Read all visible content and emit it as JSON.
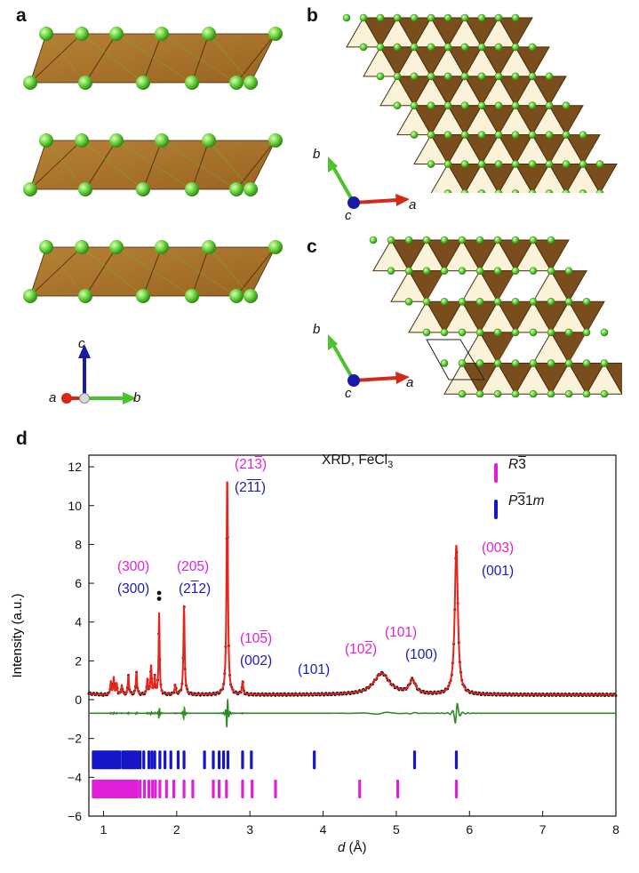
{
  "panels": {
    "a": {
      "letter": "a",
      "axes": {
        "vertical": "c",
        "depth": "a",
        "horizontal": "b"
      }
    },
    "b": {
      "letter": "b",
      "axes": {
        "up": "b",
        "out": "c",
        "right": "a"
      }
    },
    "c": {
      "letter": "c",
      "axes": {
        "up": "b",
        "out": "c",
        "right": "a"
      }
    },
    "d": {
      "letter": "d"
    }
  },
  "colors": {
    "chlorine": "#6ad23c",
    "octahedron": "#a9742e",
    "octahedron_dark": "#6e4716",
    "fit_red": "#e8231a",
    "diff_green": "#2e8b24",
    "r3_magenta": "#e020d8",
    "p31m_blue": "#1616c8",
    "axis_red": "#d42a1a",
    "axis_green": "#4cc22c",
    "axis_blue": "#1a1aa8"
  },
  "chart_data": {
    "type": "line",
    "title": "XRD, FeCl3",
    "xlabel": "d (Å)",
    "ylabel": "Intensity (a.u.)",
    "xlim": [
      0.8,
      8.0
    ],
    "ylim": [
      -6,
      12.6
    ],
    "xticks": [
      1,
      2,
      3,
      4,
      5,
      6,
      7,
      8
    ],
    "yticks": [
      -6,
      -4,
      -2,
      0,
      2,
      4,
      6,
      8,
      10,
      12
    ],
    "legend": {
      "placement": "top-right",
      "entries": [
        {
          "label": "R3",
          "bar_over": "3",
          "color": "#e020d8"
        },
        {
          "label": "P31m",
          "bar_over": "3",
          "color": "#1616c8"
        }
      ]
    },
    "fit_peaks": [
      {
        "d": 1.1,
        "h": 0.7,
        "w": 0.008
      },
      {
        "d": 1.14,
        "h": 0.9,
        "w": 0.008
      },
      {
        "d": 1.18,
        "h": 0.6,
        "w": 0.008
      },
      {
        "d": 1.25,
        "h": 0.5,
        "w": 0.008
      },
      {
        "d": 1.34,
        "h": 1.0,
        "w": 0.009
      },
      {
        "d": 1.45,
        "h": 1.2,
        "w": 0.009
      },
      {
        "d": 1.6,
        "h": 0.8,
        "w": 0.009
      },
      {
        "d": 1.65,
        "h": 1.5,
        "w": 0.009
      },
      {
        "d": 1.7,
        "h": 0.9,
        "w": 0.009
      },
      {
        "d": 1.76,
        "h": 4.2,
        "w": 0.008
      },
      {
        "d": 1.98,
        "h": 0.5,
        "w": 0.01
      },
      {
        "d": 2.1,
        "h": 4.6,
        "w": 0.01
      },
      {
        "d": 2.69,
        "h": 11.3,
        "w": 0.011
      },
      {
        "d": 2.9,
        "h": 0.7,
        "w": 0.01
      },
      {
        "d": 4.8,
        "h": 1.1,
        "w": 0.13
      },
      {
        "d": 5.22,
        "h": 0.7,
        "w": 0.05
      },
      {
        "d": 5.82,
        "h": 7.7,
        "w": 0.025
      }
    ],
    "fit_baseline": 0.25,
    "obs_excess": [
      {
        "d": 1.76,
        "value": 5.2
      },
      {
        "d": 1.76,
        "value": 5.5
      }
    ],
    "difference_offset": -0.7,
    "tick_rows": [
      {
        "name": "P31m",
        "y": -3.1,
        "color": "#1616c8",
        "positions": [
          0.86,
          0.88,
          0.9,
          0.92,
          0.94,
          0.96,
          0.98,
          1.0,
          1.02,
          1.04,
          1.06,
          1.08,
          1.1,
          1.12,
          1.14,
          1.16,
          1.18,
          1.2,
          1.22,
          1.26,
          1.28,
          1.3,
          1.32,
          1.34,
          1.36,
          1.38,
          1.4,
          1.42,
          1.44,
          1.47,
          1.5,
          1.55,
          1.62,
          1.66,
          1.7,
          1.77,
          1.84,
          1.92,
          2.02,
          2.1,
          2.38,
          2.5,
          2.58,
          2.64,
          2.7,
          2.9,
          3.02,
          3.88,
          5.25,
          5.82
        ]
      },
      {
        "name": "R3",
        "y": -4.6,
        "color": "#e020d8",
        "positions": [
          0.86,
          0.88,
          0.9,
          0.92,
          0.94,
          0.96,
          0.98,
          1.0,
          1.02,
          1.04,
          1.06,
          1.08,
          1.1,
          1.12,
          1.14,
          1.16,
          1.18,
          1.2,
          1.22,
          1.24,
          1.26,
          1.28,
          1.3,
          1.32,
          1.34,
          1.36,
          1.38,
          1.4,
          1.42,
          1.44,
          1.46,
          1.5,
          1.56,
          1.62,
          1.67,
          1.71,
          1.77,
          1.86,
          1.96,
          2.1,
          2.22,
          2.5,
          2.58,
          2.68,
          2.9,
          3.03,
          3.35,
          4.5,
          5.02,
          5.82
        ]
      }
    ],
    "annotations": [
      {
        "id": "a300-r",
        "text": "(300)",
        "color": "magenta"
      },
      {
        "id": "a300-p",
        "text": "(300)",
        "color": "blue"
      },
      {
        "id": "a205-r",
        "text": "(205)",
        "color": "magenta"
      },
      {
        "id": "a212-p",
        "text": "(212)",
        "color": "blue"
      },
      {
        "id": "a213-r",
        "text": "(213)",
        "color": "magenta"
      },
      {
        "id": "a211-p",
        "text": "(211)",
        "color": "blue"
      },
      {
        "id": "a105-r",
        "text": "(105)",
        "color": "magenta"
      },
      {
        "id": "a002-p",
        "text": "(002)",
        "color": "blue"
      },
      {
        "id": "a101-p",
        "text": "(101)",
        "color": "blue"
      },
      {
        "id": "a102-r",
        "text": "(102)",
        "color": "magenta"
      },
      {
        "id": "a101-r",
        "text": "(101)",
        "color": "magenta"
      },
      {
        "id": "a100-p",
        "text": "(100)",
        "color": "blue"
      },
      {
        "id": "a003-r",
        "text": "(003)",
        "color": "magenta"
      },
      {
        "id": "a001-p",
        "text": "(001)",
        "color": "blue"
      }
    ]
  }
}
